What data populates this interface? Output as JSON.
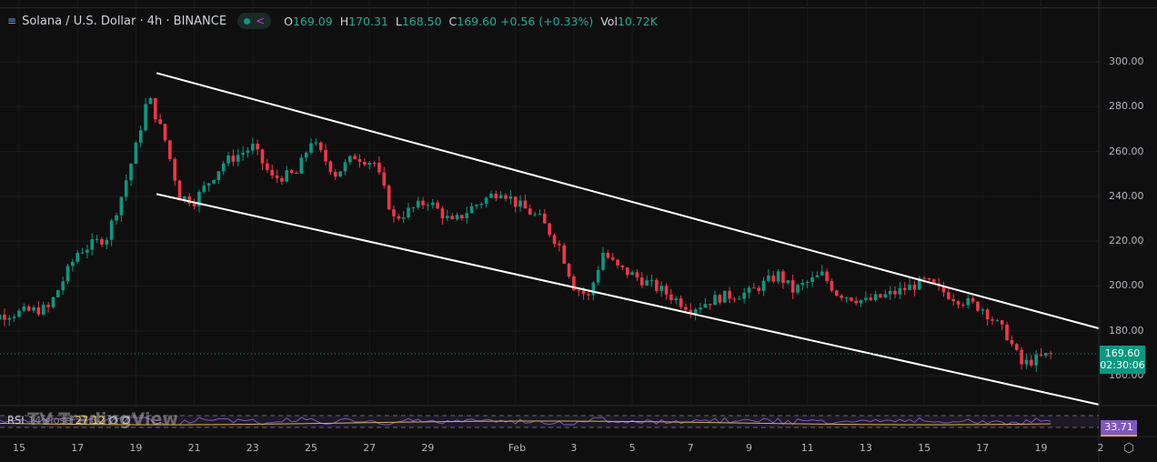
{
  "header": {
    "symbol_title": "Solana / U.S. Dollar · 4h · BINANCE",
    "ohlc": {
      "o_label": "O",
      "o": "169.09",
      "h_label": "H",
      "h": "170.31",
      "l_label": "L",
      "l": "168.50",
      "c_label": "C",
      "c": "169.60",
      "change": "+0.56 (+0.33%)",
      "vol_label": "Vol",
      "vol": "10.72K"
    },
    "status_color": "#089981"
  },
  "price_axis": {
    "ticks": [
      "300.00",
      "280.00",
      "260.00",
      "240.00",
      "220.00",
      "200.00",
      "180.00",
      "160.00"
    ]
  },
  "time_axis": {
    "ticks": [
      "15",
      "17",
      "19",
      "21",
      "23",
      "25",
      "27",
      "29",
      "Feb",
      "3",
      "5",
      "7",
      "9",
      "11",
      "13",
      "15",
      "17",
      "19",
      "2"
    ]
  },
  "last_price": {
    "value": "169.60",
    "countdown": "02:30:06"
  },
  "rsi": {
    "label": "RSI",
    "params": "14 close",
    "value": "27.12",
    "extra1": "∅",
    "extra2": "∅",
    "axis_value": "33.71"
  },
  "watermark": "TradingView",
  "colors": {
    "up": "#089981",
    "down": "#f23645",
    "rsi": "#7e57c2",
    "rsi_ma": "#d9b23a",
    "trendline": "#ffffff"
  },
  "chart_data": {
    "type": "candlestick",
    "interval": "4h",
    "price_path": [
      [
        "01-13 08:00",
        185
      ],
      [
        "01-16 00:00",
        190
      ],
      [
        "01-17 00:00",
        215
      ],
      [
        "01-18 00:00",
        222
      ],
      [
        "01-18 12:00",
        240
      ],
      [
        "01-19 00:00",
        262
      ],
      [
        "01-19 10:00",
        285
      ],
      [
        "01-20 00:00",
        265
      ],
      [
        "01-20 12:00",
        240
      ],
      [
        "01-21 00:00",
        238
      ],
      [
        "01-22 00:00",
        255
      ],
      [
        "01-23 00:00",
        262
      ],
      [
        "01-23 16:00",
        248
      ],
      [
        "01-24 12:00",
        250
      ],
      [
        "01-25 00:00",
        265
      ],
      [
        "01-25 20:00",
        250
      ],
      [
        "01-26 12:00",
        258
      ],
      [
        "01-27 04:00",
        255
      ],
      [
        "01-27 20:00",
        230
      ],
      [
        "01-29 00:00",
        238
      ],
      [
        "01-29 20:00",
        228
      ],
      [
        "01-30 12:00",
        235
      ],
      [
        "01-31 12:00",
        243
      ],
      [
        "02-01 00:00",
        237
      ],
      [
        "02-01 20:00",
        230
      ],
      [
        "02-02 12:00",
        218
      ],
      [
        "02-03 00:00",
        200
      ],
      [
        "02-03 12:00",
        195
      ],
      [
        "02-04 00:00",
        215
      ],
      [
        "02-04 12:00",
        208
      ],
      [
        "02-05 00:00",
        205
      ],
      [
        "02-06 00:00",
        198
      ],
      [
        "02-07 00:00",
        190
      ],
      [
        "02-08 00:00",
        195
      ],
      [
        "02-09 00:00",
        197
      ],
      [
        "02-10 00:00",
        205
      ],
      [
        "02-10 12:00",
        198
      ],
      [
        "02-11 12:00",
        205
      ],
      [
        "02-12 00:00",
        197
      ],
      [
        "02-13 00:00",
        193
      ],
      [
        "02-14 00:00",
        197
      ],
      [
        "02-15 00:00",
        202
      ],
      [
        "02-16 00:00",
        195
      ],
      [
        "02-17 00:00",
        190
      ],
      [
        "02-17 20:00",
        178
      ],
      [
        "02-18 08:00",
        165
      ],
      [
        "02-19 08:00",
        169.6
      ]
    ],
    "trendlines": [
      {
        "from": [
          "01-19 17:00",
          295
        ],
        "to": [
          "02-21 00:00",
          181
        ]
      },
      {
        "from": [
          "01-19 17:00",
          241
        ],
        "to": [
          "02-21 00:00",
          147
        ]
      }
    ],
    "ylim": [
      147,
      305
    ]
  }
}
